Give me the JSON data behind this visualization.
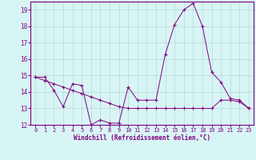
{
  "xlabel": "Windchill (Refroidissement éolien,°C)",
  "x": [
    0,
    1,
    2,
    3,
    4,
    5,
    6,
    7,
    8,
    9,
    10,
    11,
    12,
    13,
    14,
    15,
    16,
    17,
    18,
    19,
    20,
    21,
    22,
    23
  ],
  "line1": [
    14.9,
    14.9,
    14.1,
    13.1,
    14.5,
    14.4,
    12.0,
    12.3,
    12.1,
    12.1,
    14.3,
    13.5,
    13.5,
    13.5,
    16.3,
    18.1,
    19.0,
    19.4,
    18.0,
    15.2,
    14.6,
    13.6,
    13.5,
    13.0
  ],
  "line2": [
    14.9,
    14.7,
    14.5,
    14.3,
    14.1,
    13.9,
    13.7,
    13.5,
    13.3,
    13.1,
    13.0,
    13.0,
    13.0,
    13.0,
    13.0,
    13.0,
    13.0,
    13.0,
    13.0,
    13.0,
    13.5,
    13.5,
    13.4,
    13.0
  ],
  "color": "#800080",
  "bg_color": "#d8f5f5",
  "grid_color": "#b8d8d8",
  "ylim": [
    12,
    19.5
  ],
  "xlim": [
    -0.5,
    23.5
  ],
  "yticks": [
    12,
    13,
    14,
    15,
    16,
    17,
    18,
    19
  ],
  "xticks": [
    0,
    1,
    2,
    3,
    4,
    5,
    6,
    7,
    8,
    9,
    10,
    11,
    12,
    13,
    14,
    15,
    16,
    17,
    18,
    19,
    20,
    21,
    22,
    23
  ]
}
